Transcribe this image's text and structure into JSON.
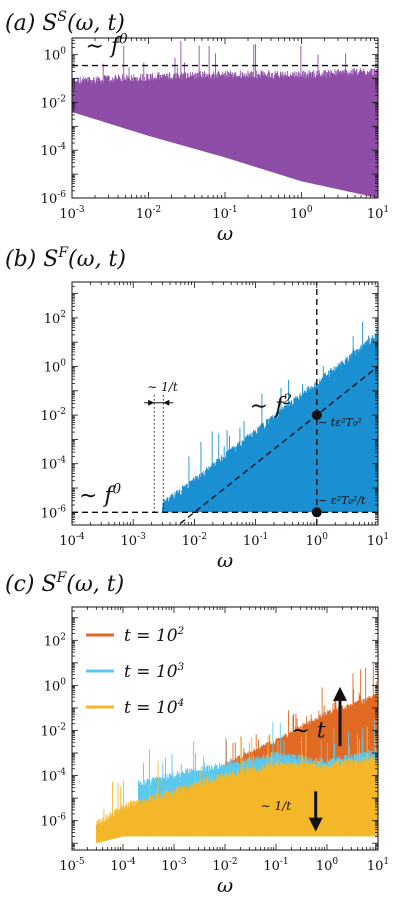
{
  "colors": {
    "purple": "#8e4da7",
    "blue": "#1a8fd1",
    "orange": "#e06a24",
    "lightblue": "#5bc8ee",
    "yellow": "#f4b72a"
  },
  "chart_data": [
    {
      "panel": "a",
      "type": "line",
      "title": "(a) S^S(ω,t)",
      "title_parts": {
        "prefix": "(a)",
        "base": "S",
        "sup": "S",
        "args": "(ω, t)"
      },
      "xlabel": "ω",
      "ylabel": "",
      "xscale": "log",
      "yscale": "log",
      "xlim": [
        0.001,
        10
      ],
      "ylim": [
        1e-06,
        5
      ],
      "xticks": [
        "10^-3",
        "10^-2",
        "10^-1",
        "10^0",
        "10^1"
      ],
      "yticks": [
        "10^-6",
        "10^-4",
        "10^-2",
        "10^0"
      ],
      "series": [
        {
          "color": "purple",
          "shape": "noisy_band",
          "x": [
            0.001,
            0.01,
            0.1,
            1,
            10
          ],
          "y_upper": [
            0.08,
            0.12,
            0.15,
            0.15,
            0.2
          ],
          "y_lower": [
            0.004,
            0.0004,
            5e-05,
            5e-06,
            1e-06
          ]
        }
      ],
      "reference_lines": [
        {
          "style": "dashed",
          "x": [
            0.001,
            10
          ],
          "y": [
            0.35,
            0.35
          ]
        }
      ],
      "annotations": [
        {
          "text": "∼ f^0",
          "base": "∼ f",
          "sup": "0",
          "x": 0.0015,
          "y": 1.2
        }
      ]
    },
    {
      "panel": "b",
      "type": "line",
      "title": "(b) S^F(ω,t)",
      "title_parts": {
        "prefix": "(b)",
        "base": "S",
        "sup": "F",
        "args": "(ω, t)"
      },
      "xlabel": "ω",
      "ylabel": "",
      "xscale": "log",
      "yscale": "log",
      "xlim": [
        0.0001,
        10
      ],
      "ylim": [
        3e-07,
        3000
      ],
      "xticks": [
        "10^-4",
        "10^-3",
        "10^-2",
        "10^-1",
        "10^0",
        "10^1"
      ],
      "yticks": [
        "10^-6",
        "10^-4",
        "10^-2",
        "10^0",
        "10^2"
      ],
      "series": [
        {
          "color": "blue",
          "shape": "noisy_band",
          "x": [
            0.003,
            0.01,
            0.1,
            1,
            10
          ],
          "y_upper": [
            2e-06,
            2e-05,
            0.002,
            0.2,
            20
          ],
          "y_lower": [
            1e-06,
            1e-06,
            1e-06,
            1e-06,
            1e-06
          ]
        }
      ],
      "reference_lines": [
        {
          "style": "dashed",
          "x": [
            0.0001,
            10
          ],
          "y": [
            1e-06,
            1e-06
          ]
        },
        {
          "style": "dashed",
          "x": [
            0.001,
            10
          ],
          "y": [
            1e-08,
            1
          ]
        },
        {
          "style": "dashed",
          "x": [
            1,
            1
          ],
          "y": [
            3e-07,
            3000
          ]
        }
      ],
      "points": [
        {
          "x": 1,
          "y": 0.01
        },
        {
          "x": 1,
          "y": 1e-06
        }
      ],
      "annotations": [
        {
          "text": "∼ f^0",
          "base": "∼ f",
          "sup": "0",
          "x": 0.00013,
          "y": 2.5e-06
        },
        {
          "text": "∼ f^2",
          "base": "∼ f",
          "sup": "2",
          "x": 0.08,
          "y": 0.012
        },
        {
          "text": "∼ 1/t",
          "x": 0.0017,
          "y": 0.1
        },
        {
          "text": "∼ tε²T₀²",
          "x": 1.05,
          "y": 0.0035
        },
        {
          "text": "∼ ε²T₀²/t",
          "x": 1.05,
          "y": 2.2e-06
        }
      ]
    },
    {
      "panel": "c",
      "type": "line",
      "title": "(c) S^F(ω,t)",
      "title_parts": {
        "prefix": "(c)",
        "base": "S",
        "sup": "F",
        "args": "(ω, t)"
      },
      "xlabel": "ω",
      "ylabel": "",
      "xscale": "log",
      "yscale": "log",
      "xlim": [
        1e-05,
        10
      ],
      "ylim": [
        5e-08,
        3000
      ],
      "xticks": [
        "10^-5",
        "10^-4",
        "10^-3",
        "10^-2",
        "10^-1",
        "10^0",
        "10^1"
      ],
      "yticks": [
        "10^-6",
        "10^-4",
        "10^-2",
        "10^0",
        "10^2"
      ],
      "series": [
        {
          "name": "t = 10^2",
          "name_base": "t = 10",
          "name_sup": "2",
          "color": "orange",
          "shape": "noisy_band",
          "x": [
            0.01,
            0.1,
            1,
            10
          ],
          "y_upper": [
            0.0003,
            0.003,
            0.05,
            0.3
          ],
          "y_lower": [
            1e-05,
            1e-05,
            1e-05,
            1e-05
          ]
        },
        {
          "name": "t = 10^3",
          "name_base": "t = 10",
          "name_sup": "3",
          "color": "lightblue",
          "shape": "noisy_band",
          "x": [
            0.0002,
            0.001,
            0.01,
            0.1,
            1,
            10
          ],
          "y_upper": [
            4e-05,
            0.0001,
            0.0003,
            0.0008,
            0.0004,
            0.001
          ],
          "y_lower": [
            1e-06,
            1e-06,
            1e-06,
            1e-06,
            1e-06,
            1e-06
          ]
        },
        {
          "name": "t = 10^4",
          "name_base": "t = 10",
          "name_sup": "4",
          "color": "yellow",
          "shape": "noisy_band",
          "x": [
            3e-05,
            0.0001,
            0.001,
            0.01,
            0.1,
            1,
            10
          ],
          "y_upper": [
            7e-07,
            4e-06,
            2e-05,
            0.0001,
            0.0003,
            0.0003,
            0.0005
          ],
          "y_lower": [
            1e-07,
            2e-07,
            2e-07,
            2e-07,
            2e-07,
            2e-07,
            2e-07
          ]
        }
      ],
      "arrows": [
        {
          "x": 1.8,
          "y_from": 0.002,
          "y_to": 0.7,
          "direction": "up"
        },
        {
          "x": 0.6,
          "y_from": 2e-05,
          "y_to": 4e-07,
          "direction": "down"
        }
      ],
      "annotations": [
        {
          "text": "∼ t",
          "x": 0.2,
          "y": 0.005
        },
        {
          "text": "∼ 1/t",
          "x": 0.05,
          "y": 3e-06
        }
      ],
      "legend_position": "top-left"
    }
  ]
}
